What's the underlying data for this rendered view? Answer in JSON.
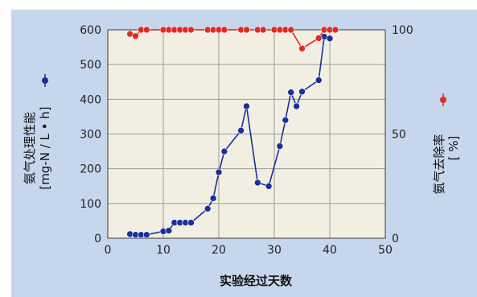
{
  "chart_data": {
    "type": "line",
    "xlabel": "实验经过天数",
    "xlim": [
      0,
      50
    ],
    "xticks": [
      0,
      10,
      20,
      30,
      40,
      50
    ],
    "left_axis": {
      "label_line1": "氨气处理性能",
      "label_line2": "[mg-N / L • h]",
      "ylim": [
        0,
        600
      ],
      "ticks": [
        0,
        100,
        200,
        300,
        400,
        500,
        600
      ]
    },
    "right_axis": {
      "label_line1": "氨气去除率",
      "label_line2": "[ %]",
      "ylim": [
        0,
        100
      ],
      "ticks": [
        0,
        50,
        100
      ]
    },
    "grid": true,
    "colors": {
      "panel_bg": "#c6d6ec",
      "plot_bg": "#f2efe2",
      "blue_series": "#1a2f9c",
      "red_series": "#e22a22"
    },
    "series": [
      {
        "axis": "left",
        "color": "#1a2f9c",
        "x": [
          4,
          5,
          6,
          7,
          10,
          11,
          12,
          13,
          14,
          15,
          18,
          19,
          20,
          21,
          24,
          25,
          27,
          29,
          31,
          32,
          33,
          34,
          35,
          38,
          39,
          40
        ],
        "y": [
          12,
          10,
          10,
          10,
          20,
          22,
          45,
          45,
          45,
          45,
          85,
          115,
          190,
          250,
          310,
          380,
          160,
          150,
          265,
          340,
          420,
          380,
          422,
          455,
          580,
          575
        ]
      },
      {
        "axis": "right",
        "color": "#e22a22",
        "x": [
          4,
          5,
          6,
          7,
          10,
          11,
          12,
          13,
          14,
          15,
          18,
          19,
          20,
          21,
          24,
          25,
          27,
          28,
          30,
          31,
          32,
          33,
          35,
          38,
          39,
          40,
          41
        ],
        "y": [
          98,
          97,
          100,
          100,
          100,
          100,
          100,
          100,
          100,
          100,
          100,
          100,
          100,
          100,
          100,
          100,
          100,
          100,
          100,
          100,
          100,
          100,
          91,
          96,
          100,
          100,
          100
        ]
      }
    ]
  }
}
